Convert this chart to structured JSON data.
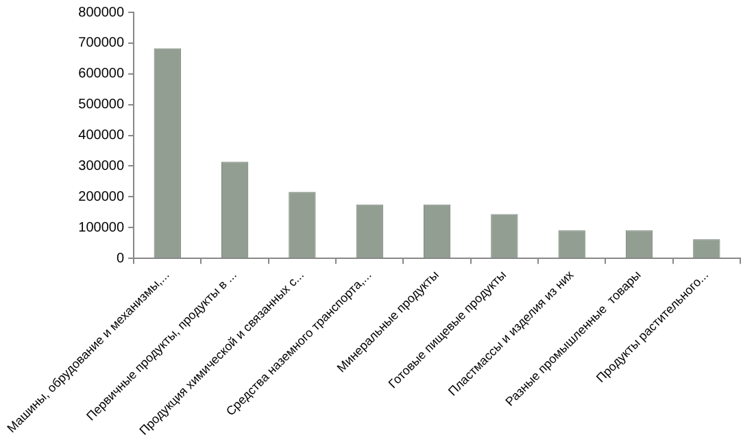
{
  "chart_data": {
    "type": "bar",
    "categories": [
      "Машины, обрудование и механизмы,...",
      "Первичные продукты, продукты в ...",
      "Продукция химической и связанных с...",
      "Средства наземного транспорта,...",
      "Минеральные продукты",
      "Готовые пищевые продукты",
      "Пластмассы и изделия из них",
      "Разные промышленные  товары",
      "Продукты растительного..."
    ],
    "values": [
      683000,
      314000,
      216000,
      175000,
      175000,
      144000,
      91000,
      91000,
      62000
    ],
    "color": "#929e92",
    "ylim": [
      0,
      800000
    ],
    "yticks": [
      0,
      100000,
      200000,
      300000,
      400000,
      500000,
      600000,
      700000,
      800000
    ],
    "grid": false,
    "legend": false
  }
}
